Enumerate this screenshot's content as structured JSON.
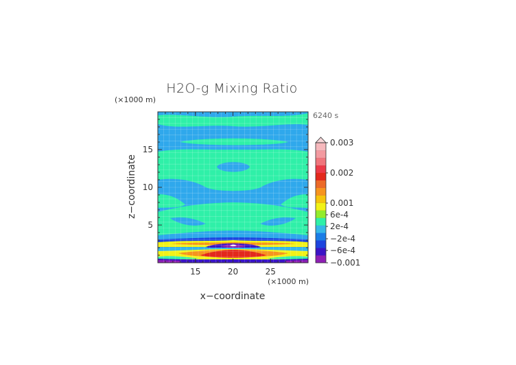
{
  "chart_data": {
    "type": "heatmap",
    "title": "H2O-g Mixing Ratio",
    "xlabel": "x−coordinate",
    "ylabel": "z−coordinate",
    "x_unit": "(×1000 m)",
    "y_unit": "(×1000 m)",
    "time_label": "6240 s",
    "xlim": [
      10,
      30
    ],
    "ylim": [
      0,
      20
    ],
    "x_ticks": [
      15,
      20,
      25
    ],
    "y_ticks": [
      5,
      10,
      15
    ],
    "grid": true,
    "colorbar": {
      "position": "right",
      "labels": [
        {
          "text": "0.003",
          "value": 0.003
        },
        {
          "text": "0.002",
          "value": 0.002
        },
        {
          "text": "0.001",
          "value": 0.001
        },
        {
          "text": "6e-4",
          "value": 0.0006
        },
        {
          "text": "2e-4",
          "value": 0.0002
        },
        {
          "text": "−2e-4",
          "value": -0.0002
        },
        {
          "text": "−6e-4",
          "value": -0.0006
        },
        {
          "text": "−0.001",
          "value": -0.001
        }
      ],
      "colors_bottom_to_top": [
        "#8e1fb4",
        "#3b14c6",
        "#1d44de",
        "#1a7de6",
        "#36b8e8",
        "#2ff0a8",
        "#92ec2c",
        "#f2f216",
        "#f6c40c",
        "#f7941e",
        "#ec6a28",
        "#e3291c",
        "#ec3a48",
        "#f0757c",
        "#f39aa0",
        "#f6b8bc"
      ]
    },
    "field": {
      "background": "#2fa8ec",
      "regions": [
        {
          "label": "top band",
          "x": [
            10,
            30
          ],
          "z": [
            18.3,
            19.8
          ],
          "value": 0.0002
        },
        {
          "label": "band 17",
          "x": [
            12,
            28
          ],
          "z": [
            16.3,
            17.2
          ],
          "value": 0.0002
        },
        {
          "label": "upper wide region",
          "x": [
            10,
            30
          ],
          "z": [
            9.8,
            15.0
          ],
          "value": 0.0002
        },
        {
          "label": "central hole",
          "x": [
            18,
            22
          ],
          "z": [
            12.2,
            13.6
          ],
          "value": -0.0002
        },
        {
          "label": "middle region",
          "x": [
            10,
            30
          ],
          "z": [
            3.6,
            7.2
          ],
          "value": 0.0002
        },
        {
          "label": "low band",
          "x": [
            10,
            30
          ],
          "z": [
            2.2,
            3.1
          ],
          "value": 0.0006
        },
        {
          "label": "low dip",
          "x": [
            16,
            24
          ],
          "z": [
            1.5,
            2.6
          ],
          "value": -0.0006
        },
        {
          "label": "surface maximum",
          "x": [
            13,
            27
          ],
          "z": [
            0.3,
            1.4
          ],
          "value": 0.001
        },
        {
          "label": "surface core",
          "x": [
            17,
            23
          ],
          "z": [
            0.5,
            1.1
          ],
          "value": 0.0018
        },
        {
          "label": "bottom layer",
          "x": [
            10,
            30
          ],
          "z": [
            0,
            0.3
          ],
          "value": -0.001
        }
      ]
    }
  }
}
